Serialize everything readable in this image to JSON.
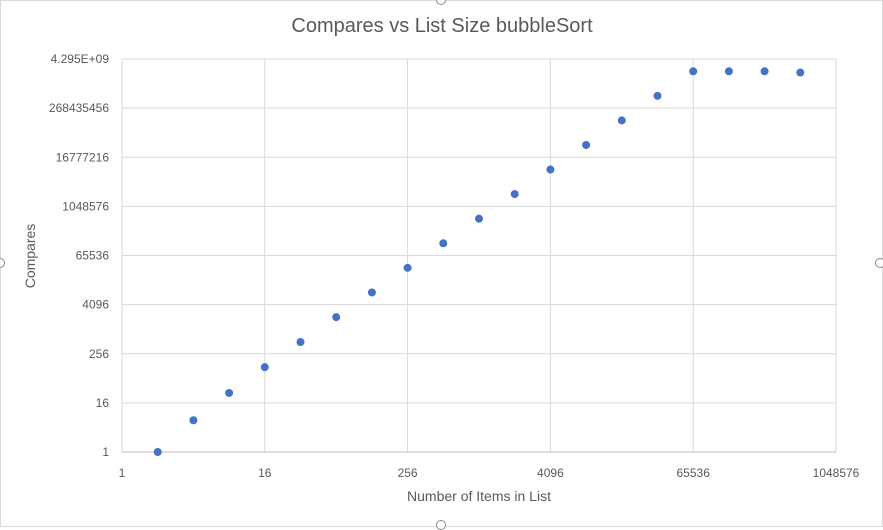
{
  "chart_data": {
    "type": "scatter",
    "title": "Compares vs List Size bubbleSort",
    "xlabel": "Number of Items in List",
    "ylabel": "Compares",
    "x_scale": "log2",
    "y_scale": "log2",
    "xlim": [
      1,
      1048576
    ],
    "ylim": [
      1,
      4294967296
    ],
    "x_ticks": [
      {
        "value": 1,
        "label": "1"
      },
      {
        "value": 16,
        "label": "16"
      },
      {
        "value": 256,
        "label": "256"
      },
      {
        "value": 4096,
        "label": "4096"
      },
      {
        "value": 65536,
        "label": "65536"
      },
      {
        "value": 1048576,
        "label": "1048576"
      }
    ],
    "y_ticks": [
      {
        "value": 1,
        "label": "1"
      },
      {
        "value": 16,
        "label": "16"
      },
      {
        "value": 256,
        "label": "256"
      },
      {
        "value": 4096,
        "label": "4096"
      },
      {
        "value": 65536,
        "label": "65536"
      },
      {
        "value": 1048576,
        "label": "1048576"
      },
      {
        "value": 16777216,
        "label": "16777216"
      },
      {
        "value": 268435456,
        "label": "268435456"
      },
      {
        "value": 4294967296,
        "label": "4.295E+09"
      }
    ],
    "grid": true,
    "marker_color": "#4472c4",
    "points": [
      {
        "x": 2,
        "y": 1
      },
      {
        "x": 4,
        "y": 6
      },
      {
        "x": 8,
        "y": 28
      },
      {
        "x": 16,
        "y": 120
      },
      {
        "x": 32,
        "y": 496
      },
      {
        "x": 64,
        "y": 2016
      },
      {
        "x": 128,
        "y": 8128
      },
      {
        "x": 256,
        "y": 32640
      },
      {
        "x": 512,
        "y": 130816
      },
      {
        "x": 1024,
        "y": 523776
      },
      {
        "x": 2048,
        "y": 2096128
      },
      {
        "x": 4096,
        "y": 8386560
      },
      {
        "x": 8192,
        "y": 33550336
      },
      {
        "x": 16384,
        "y": 134209536
      },
      {
        "x": 32768,
        "y": 536854528
      },
      {
        "x": 65536,
        "y": 2147450880
      },
      {
        "x": 131072,
        "y": 2147450880
      },
      {
        "x": 262144,
        "y": 2147450880
      },
      {
        "x": 524288,
        "y": 2000000000
      }
    ]
  }
}
